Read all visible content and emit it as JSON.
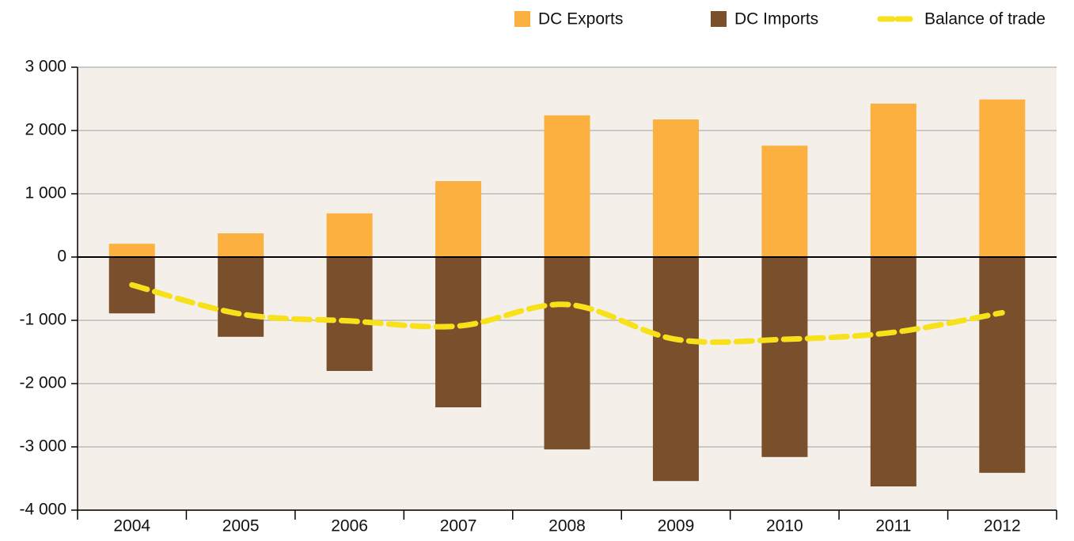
{
  "chart_data": {
    "type": "bar_line",
    "categories": [
      "2004",
      "2005",
      "2006",
      "2007",
      "2008",
      "2009",
      "2010",
      "2011",
      "2012"
    ],
    "series": [
      {
        "name": "DC Exports",
        "color": "#fbb040",
        "type": "bar",
        "values": [
          210,
          375,
          690,
          1200,
          2240,
          2175,
          1760,
          2425,
          2490
        ]
      },
      {
        "name": "DC Imports",
        "color": "#7a4f2b",
        "type": "bar",
        "values": [
          -890,
          -1260,
          -1800,
          -2375,
          -3040,
          -3540,
          -3160,
          -3625,
          -3410
        ]
      },
      {
        "name": "Balance of trade",
        "color": "#f7e11a",
        "type": "line",
        "values": [
          -440,
          -900,
          -1010,
          -1090,
          -750,
          -1300,
          -1300,
          -1190,
          -880
        ]
      }
    ],
    "ylim": [
      -4000,
      3000
    ],
    "yticks": [
      {
        "value": -4000,
        "label": "-4 000"
      },
      {
        "value": -3000,
        "label": "-3 000"
      },
      {
        "value": -2000,
        "label": "-2 000"
      },
      {
        "value": -1000,
        "label": "-1 000"
      },
      0,
      {
        "value": 1000,
        "label": "1 000"
      },
      {
        "value": 2000,
        "label": "2 000"
      },
      {
        "value": 3000,
        "label": "3 000"
      }
    ],
    "grid": true,
    "legend": "top-right",
    "background": "#f4efe8"
  }
}
